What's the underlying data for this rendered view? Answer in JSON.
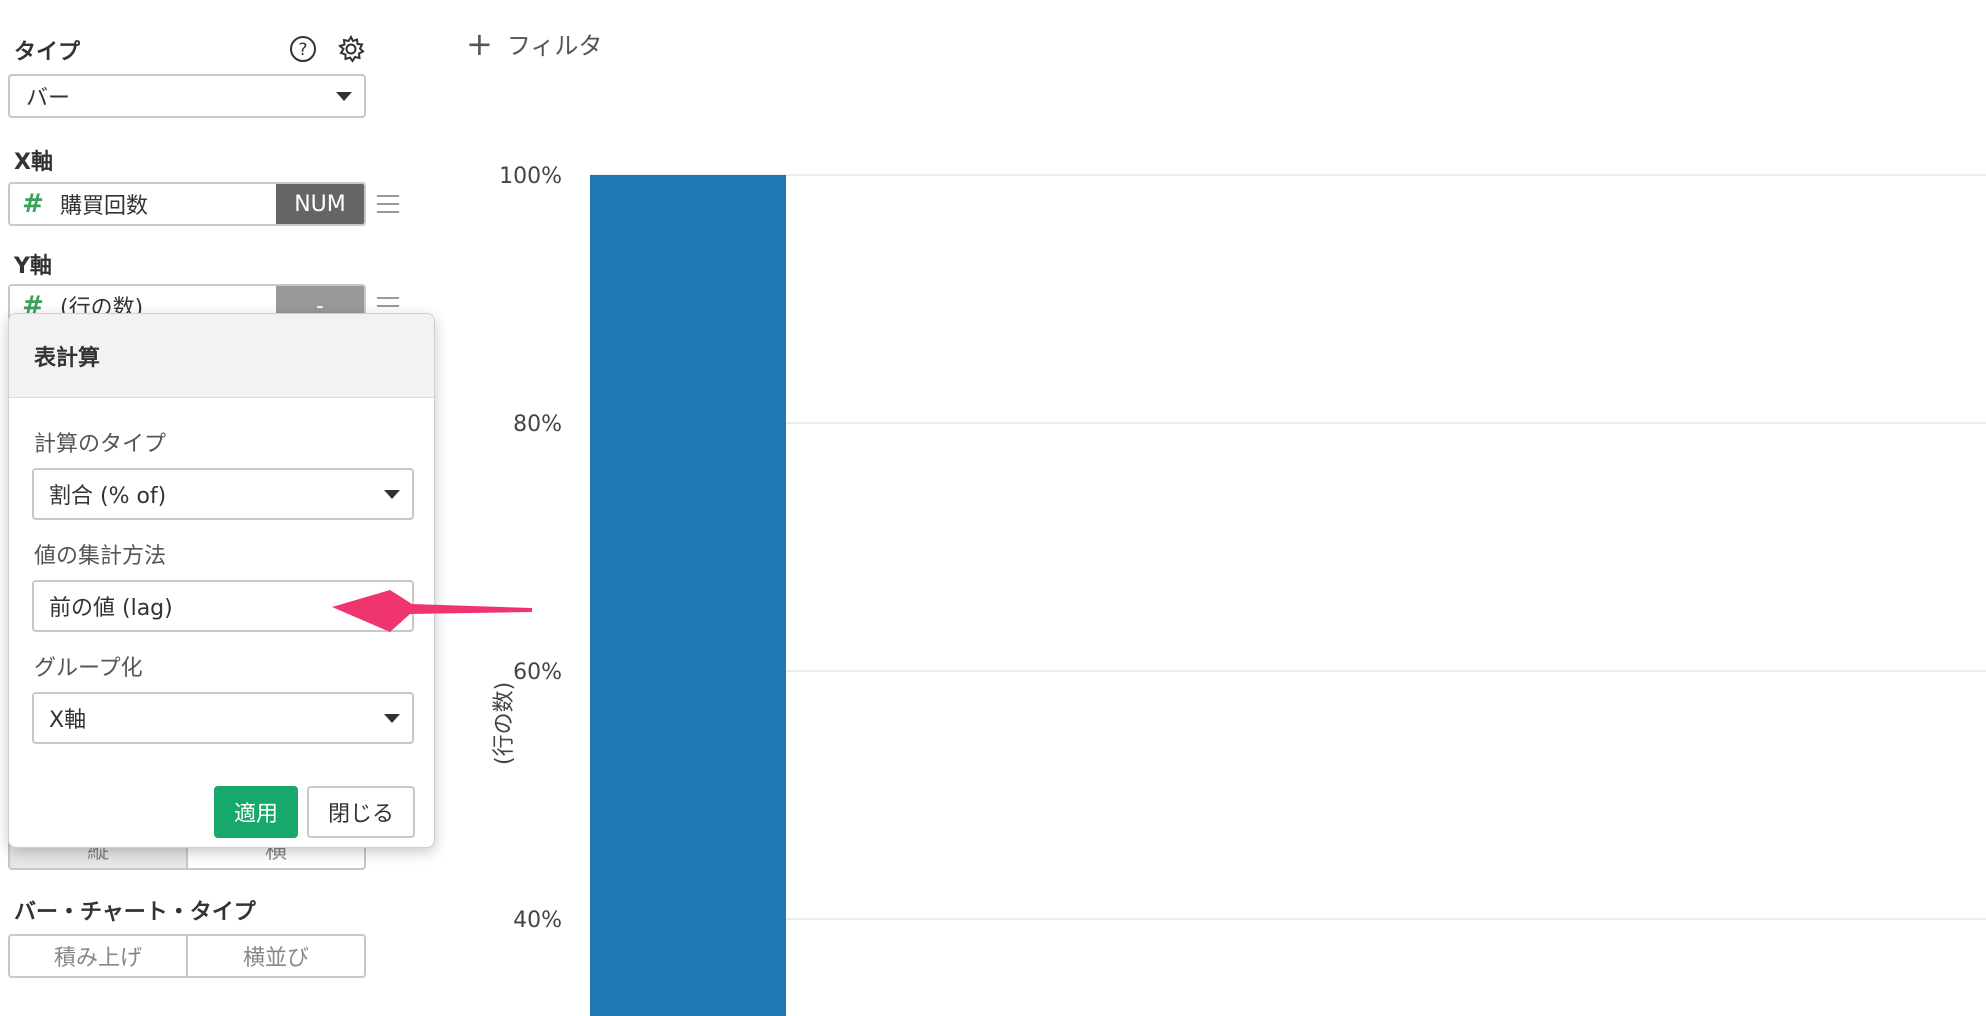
{
  "sidebar": {
    "type_title": "タイプ",
    "type_value": "バー",
    "x_axis_title": "X軸",
    "x_field": {
      "label": "購買回数",
      "type": "NUM"
    },
    "y_axis_title": "Y軸",
    "y_field": {
      "label": "(行の数)",
      "type": "-"
    },
    "orientation": {
      "left": "縦",
      "right": "横"
    },
    "bar_type_title": "バー・チャート・タイプ",
    "bar_type": {
      "left": "積み上げ",
      "right": "横並び"
    }
  },
  "popover": {
    "title": "表計算",
    "calc_type_label": "計算のタイプ",
    "calc_type_value": "割合 (% of)",
    "agg_label": "値の集計方法",
    "agg_value": "前の値 (lag)",
    "group_label": "グループ化",
    "group_value": "X軸",
    "apply_label": "適用",
    "close_label": "閉じる"
  },
  "filter_label": "フィルタ",
  "colors": {
    "bar": "#1f77b4",
    "accent_green": "#17a86b",
    "arrow": "#f0346e",
    "num_badge": "#666666"
  },
  "chart_data": {
    "type": "bar",
    "ylabel": "(行の数)",
    "y_ticks": [
      "100%",
      "80%",
      "60%",
      "40%"
    ],
    "y_tick_values": [
      100,
      80,
      60,
      40
    ],
    "ylim": [
      33,
      100
    ],
    "series": [
      {
        "values": [
          100
        ]
      }
    ],
    "grid": true
  }
}
